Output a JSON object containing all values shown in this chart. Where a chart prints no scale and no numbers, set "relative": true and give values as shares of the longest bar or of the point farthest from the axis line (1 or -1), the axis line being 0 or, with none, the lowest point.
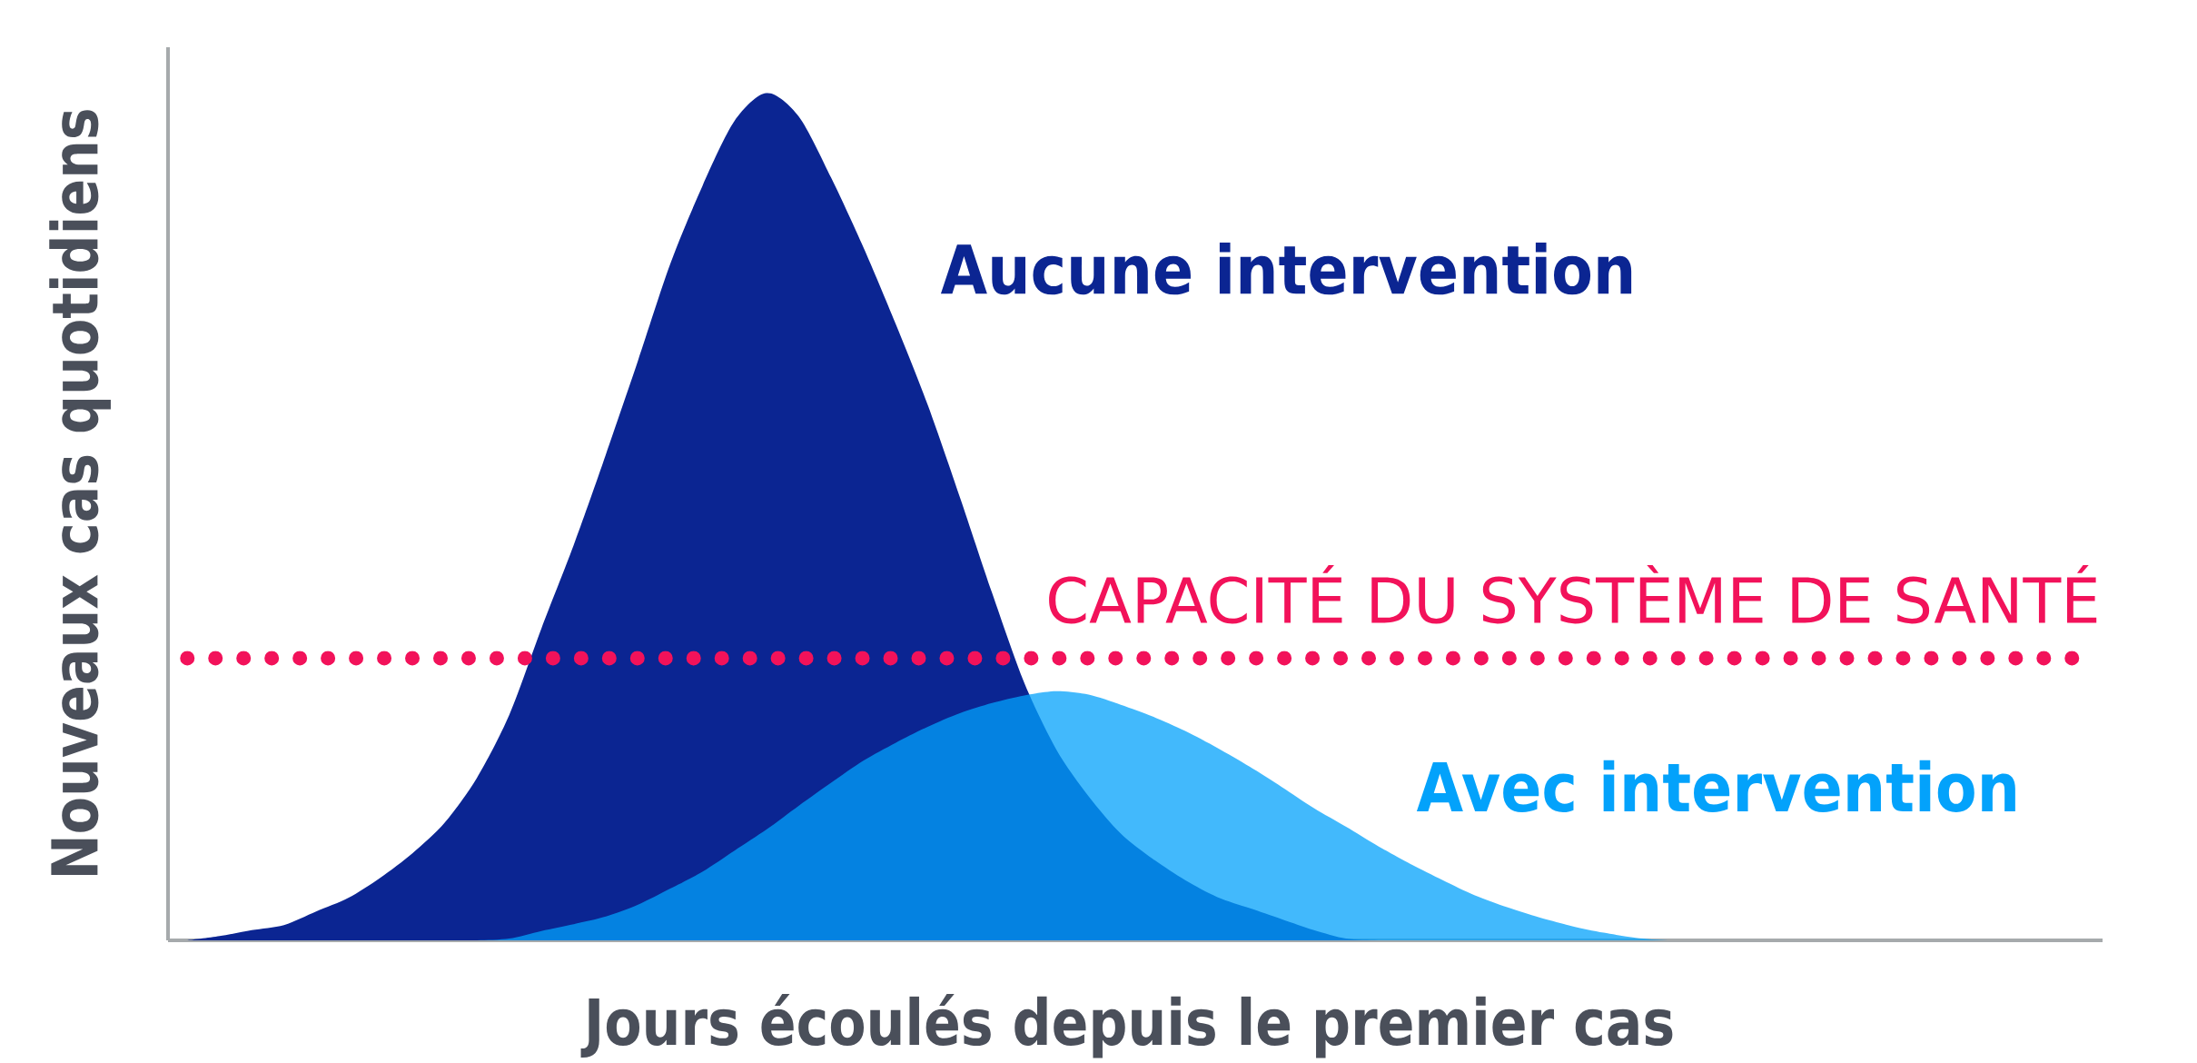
{
  "chart_data": {
    "type": "area",
    "relative": true,
    "xlabel": "Jours écoulés depuis le premier cas",
    "ylabel": "Nouveaux cas quotidiens",
    "categories": [
      null,
      null,
      null,
      null,
      null,
      null,
      null,
      null,
      null,
      null,
      null,
      null,
      null,
      null,
      null,
      null,
      null,
      null,
      null,
      null,
      null,
      null,
      null,
      null,
      null,
      null,
      null,
      null,
      null,
      null,
      null,
      null,
      null,
      null,
      null,
      null,
      null,
      null,
      null,
      null,
      null,
      null,
      null,
      null,
      null,
      null,
      null,
      null,
      null,
      null,
      null,
      null,
      null,
      null,
      null,
      null,
      null,
      null,
      null,
      null
    ],
    "series": [
      {
        "name": "Aucune intervention",
        "color": "#0b2592",
        "values": [
          0,
          0.005,
          0.012,
          0.018,
          0.034,
          0.05,
          0.074,
          0.103,
          0.139,
          0.192,
          0.266,
          0.368,
          0.466,
          0.573,
          0.684,
          0.798,
          0.89,
          0.967,
          1,
          0.972,
          0.9,
          0.818,
          0.728,
          0.632,
          0.523,
          0.41,
          0.304,
          0.225,
          0.17,
          0.126,
          0.096,
          0.071,
          0.051,
          0.038,
          0.025,
          0.012,
          0.002,
          0,
          0,
          0,
          0,
          0,
          0,
          0,
          0,
          0,
          0,
          0,
          0,
          0,
          0,
          0,
          0,
          0,
          0,
          0,
          0,
          0,
          0,
          0
        ]
      },
      {
        "name": "Avec intervention",
        "color": "#42b9fc",
        "values": [
          0,
          0,
          0,
          0,
          0,
          0,
          0,
          0,
          0,
          0,
          0.002,
          0.011,
          0.019,
          0.028,
          0.042,
          0.061,
          0.081,
          0.106,
          0.131,
          0.159,
          0.186,
          0.212,
          0.233,
          0.252,
          0.268,
          0.28,
          0.289,
          0.294,
          0.29,
          0.278,
          0.264,
          0.247,
          0.227,
          0.205,
          0.181,
          0.156,
          0.134,
          0.111,
          0.09,
          0.071,
          0.053,
          0.039,
          0.027,
          0.017,
          0.009,
          0.003,
          0,
          0,
          0,
          0,
          0,
          0,
          0,
          0,
          0,
          0,
          0,
          0,
          0,
          0
        ]
      }
    ],
    "ref_lines": [
      {
        "axis": "y",
        "value": 0.333,
        "label": "CAPACITÉ DU SYSTÈME DE SANTÉ",
        "color": "#f2125a",
        "line_style": "dotted"
      }
    ]
  }
}
